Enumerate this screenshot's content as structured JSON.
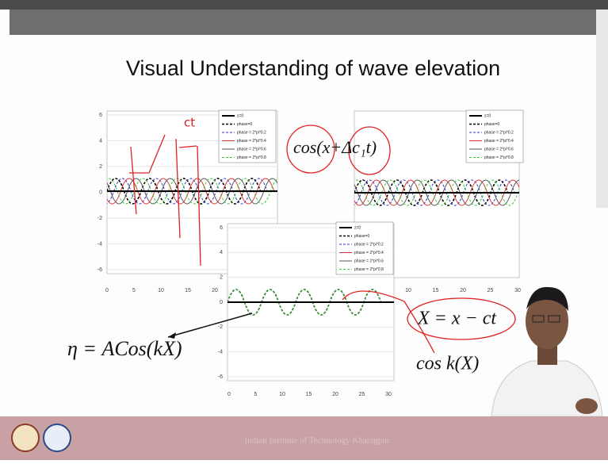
{
  "slide": {
    "title": "Visual Understanding of wave elevation",
    "plots": [
      {
        "yticks": [
          "6",
          "4",
          "2",
          "0",
          "-2",
          "-4",
          "-6"
        ],
        "xticks": [
          "0",
          "5",
          "10",
          "15",
          "20"
        ],
        "legend": [
          "z=0",
          "phase=0",
          "phase = 2*pi*0.2",
          "phase = 2*pi*0.4",
          "phase = 2*pi*0.6",
          "phase = 2*pi*0.8"
        ]
      },
      {
        "xticks": [
          "10",
          "15",
          "20",
          "25",
          "30"
        ],
        "legend": [
          "z=0",
          "phase=0",
          "phase = 2*pi*0.2",
          "phase = 2*pi*0.4",
          "phase = 2*pi*0.6",
          "phase = 2*pi*0.8"
        ]
      },
      {
        "yticks": [
          "6",
          "4",
          "2",
          "0",
          "-2",
          "-4",
          "-6"
        ],
        "xticks": [
          "0",
          "5",
          "10",
          "15",
          "20",
          "25",
          "30"
        ],
        "legend": [
          "z=0",
          "phase=0",
          "phase = 2*pi*0.2",
          "phase = 2*pi*0.4",
          "phase = 2*pi*0.6",
          "phase = 2*pi*0.8"
        ]
      }
    ],
    "annotations": {
      "handwritten": "ct",
      "phase_formula": "cos(x+Δc₁t)",
      "moving_coordinate": "X = x − ct",
      "cosine": "cos k(X)",
      "elevation": "η = ACos(kX)"
    },
    "footer": "Indian Institute of Technology Kharagpur"
  }
}
